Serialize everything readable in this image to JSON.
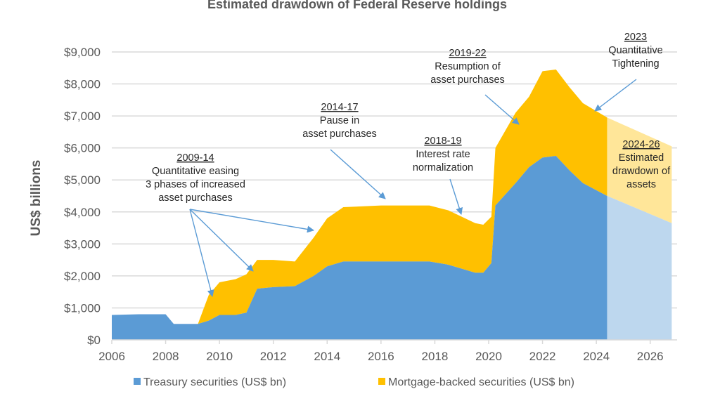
{
  "chart_data": {
    "type": "area",
    "stacked": true,
    "title": "Estimated drawdown of Federal Reserve holdings",
    "ylabel": "US$ billions",
    "xlabel": "",
    "xlim": [
      2006,
      2027
    ],
    "ylim": [
      0,
      9000
    ],
    "grid": true,
    "legend_position": "bottom",
    "x_ticks": [
      "2006",
      "2008",
      "2010",
      "2012",
      "2014",
      "2016",
      "2018",
      "2020",
      "2022",
      "2024",
      "2026"
    ],
    "y_ticks": [
      "$0",
      "$1,000",
      "$2,000",
      "$3,000",
      "$4,000",
      "$5,000",
      "$6,000",
      "$7,000",
      "$8,000",
      "$9,000"
    ],
    "x": [
      2006,
      2007,
      2008,
      2008.3,
      2009.2,
      2009.6,
      2010,
      2010.6,
      2011,
      2011.4,
      2012,
      2012.8,
      2013.5,
      2014,
      2014.6,
      2016,
      2017.8,
      2018.5,
      2019.5,
      2019.8,
      2020.1,
      2020.25,
      2021,
      2021.5,
      2022,
      2022.5,
      2023,
      2023.5,
      2024.4
    ],
    "series": [
      {
        "name": "Treasury securities (US$ bn)",
        "color": "#5b9bd5",
        "values": [
          780,
          800,
          800,
          500,
          500,
          600,
          780,
          780,
          850,
          1600,
          1650,
          1680,
          2000,
          2300,
          2450,
          2450,
          2450,
          2350,
          2100,
          2100,
          2400,
          4200,
          4900,
          5400,
          5700,
          5750,
          5300,
          4900,
          4500
        ]
      },
      {
        "name": "Mortgage-backed securities (US$ bn)",
        "color": "#ffc000",
        "values": [
          0,
          0,
          0,
          0,
          0,
          800,
          1020,
          1120,
          1200,
          900,
          850,
          770,
          1200,
          1500,
          1700,
          1750,
          1750,
          1700,
          1550,
          1500,
          1450,
          1800,
          2200,
          2200,
          2700,
          2700,
          2600,
          2500,
          2450
        ]
      }
    ],
    "projection": {
      "x": [
        2024.4,
        2026.8
      ],
      "treasury": [
        4500,
        3650
      ],
      "mbs": [
        2450,
        2400
      ],
      "colors": {
        "treasury": "#bdd7ee",
        "mbs": "#ffe699"
      }
    },
    "annotations": [
      {
        "heading": "2009-14",
        "lines": [
          "Quantitative easing",
          "3 phases of increased",
          "asset purchases"
        ]
      },
      {
        "heading": "2014-17",
        "lines": [
          "Pause  in",
          "asset purchases"
        ]
      },
      {
        "heading": "2018-19",
        "lines": [
          "Interest rate",
          "normalization"
        ]
      },
      {
        "heading": "2019-22",
        "lines": [
          "Resumption of",
          "asset purchases"
        ]
      },
      {
        "heading": "2023",
        "lines": [
          "Quantitative",
          "Tightening"
        ]
      },
      {
        "heading": "2024-26",
        "lines": [
          "Estimated",
          "drawdown of",
          "assets"
        ]
      }
    ],
    "legend": [
      "Treasury securities (US$ bn)",
      "Mortgage-backed securities (US$ bn)"
    ]
  }
}
